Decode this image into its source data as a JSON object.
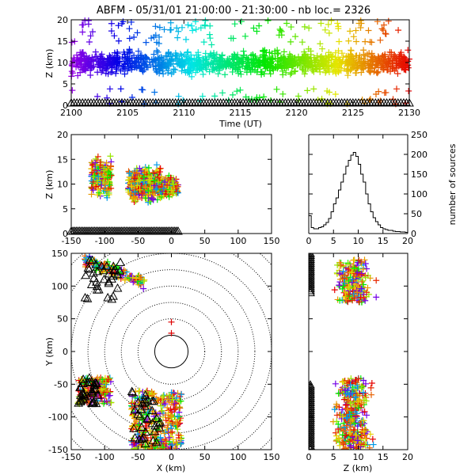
{
  "title": "ABFM - 05/31/01 21:00:00 - 21:30:00 - nb loc.=   2326",
  "chart_data": [
    {
      "id": "time-height",
      "type": "scatter",
      "xlabel": "Time (UT)",
      "ylabel": "Z (km)",
      "xlim": [
        2100,
        2130
      ],
      "ylim": [
        0,
        20
      ],
      "xticks": [
        2100,
        2105,
        2110,
        2115,
        2120,
        2125,
        2130
      ],
      "yticks": [
        0,
        5,
        10,
        15,
        20
      ],
      "marker": "+",
      "color_encoding": "time (purple at 2100 to red at 2130)",
      "altitude_band_km": [
        5,
        15
      ],
      "altitude_center_km": 10,
      "ground_markers": "triangles along Z=0 across full time range"
    },
    {
      "id": "x-height",
      "type": "scatter",
      "xlabel": "",
      "ylabel": "Z (km)",
      "xlim": [
        -150,
        150
      ],
      "ylim": [
        0,
        20
      ],
      "xticks": [
        -150,
        -100,
        -50,
        0,
        50,
        100,
        150
      ],
      "yticks": [
        0,
        5,
        10,
        15,
        20
      ],
      "marker": "+",
      "clusters": [
        {
          "x_range": [
            -120,
            -90
          ],
          "z_range": [
            5,
            18
          ]
        },
        {
          "x_range": [
            -65,
            -15
          ],
          "z_range": [
            4,
            16
          ]
        },
        {
          "x_range": [
            -15,
            10
          ],
          "z_range": [
            6,
            13
          ]
        }
      ],
      "ground_markers_x_range": [
        -150,
        10
      ]
    },
    {
      "id": "altitude-histogram",
      "type": "bar",
      "xlabel": "",
      "ylabel": "number of sources",
      "xlim": [
        0,
        20
      ],
      "ylim": [
        0,
        250
      ],
      "xticks": [
        0,
        5,
        10,
        15,
        20
      ],
      "yticks": [
        0,
        50,
        100,
        150,
        200,
        250
      ],
      "x": [
        0.25,
        0.75,
        1.25,
        1.75,
        2.25,
        2.75,
        3.25,
        3.75,
        4.25,
        4.75,
        5.25,
        5.75,
        6.25,
        6.75,
        7.25,
        7.75,
        8.25,
        8.75,
        9.25,
        9.75,
        10.25,
        10.75,
        11.25,
        11.75,
        12.25,
        12.75,
        13.25,
        13.75,
        14.25,
        14.75,
        15.25,
        15.75,
        16.25,
        16.75,
        17.25,
        17.75,
        18.25,
        18.75,
        19.25,
        19.75
      ],
      "values": [
        45,
        15,
        12,
        12,
        15,
        17,
        22,
        28,
        38,
        55,
        75,
        90,
        110,
        130,
        150,
        170,
        185,
        198,
        205,
        195,
        175,
        150,
        130,
        100,
        75,
        55,
        40,
        30,
        22,
        15,
        12,
        10,
        8,
        8,
        6,
        5,
        5,
        4,
        4,
        3
      ]
    },
    {
      "id": "plan-view",
      "type": "scatter",
      "xlabel": "X (km)",
      "ylabel": "Y (km)",
      "xlim": [
        -150,
        150
      ],
      "ylim": [
        -150,
        150
      ],
      "xticks": [
        -150,
        -100,
        -50,
        0,
        50,
        100,
        150
      ],
      "yticks": [
        -150,
        -100,
        -50,
        0,
        50,
        100,
        150
      ],
      "marker": "+",
      "range_rings_km": [
        25,
        50,
        75,
        100,
        125,
        150,
        175,
        200
      ],
      "clusters": [
        {
          "x_range": [
            -130,
            -40
          ],
          "y_range": [
            80,
            140
          ],
          "label": "north-west band"
        },
        {
          "x_range": [
            -140,
            -90
          ],
          "y_range": [
            -80,
            -40
          ],
          "label": "south-west group"
        },
        {
          "x_range": [
            -60,
            15
          ],
          "y_range": [
            -150,
            -60
          ],
          "label": "south cells"
        }
      ],
      "isolated_points": [
        [
          0,
          45
        ],
        [
          0,
          28
        ]
      ]
    },
    {
      "id": "z-y",
      "type": "scatter",
      "xlabel": "Z (km)",
      "ylabel": "",
      "xlim": [
        0,
        20
      ],
      "ylim": [
        -150,
        150
      ],
      "xticks": [
        0,
        5,
        10,
        15,
        20
      ],
      "yticks": [
        -150,
        -100,
        -50,
        0,
        50,
        100,
        150
      ],
      "marker": "+",
      "clusters": [
        {
          "z_range": [
            2,
            20
          ],
          "y_range": [
            75,
            140
          ]
        },
        {
          "z_range": [
            2,
            20
          ],
          "y_range": [
            -150,
            -40
          ]
        }
      ],
      "ground_markers": "triangles along Z=0 at Y 90..150 and -150..-50"
    }
  ]
}
